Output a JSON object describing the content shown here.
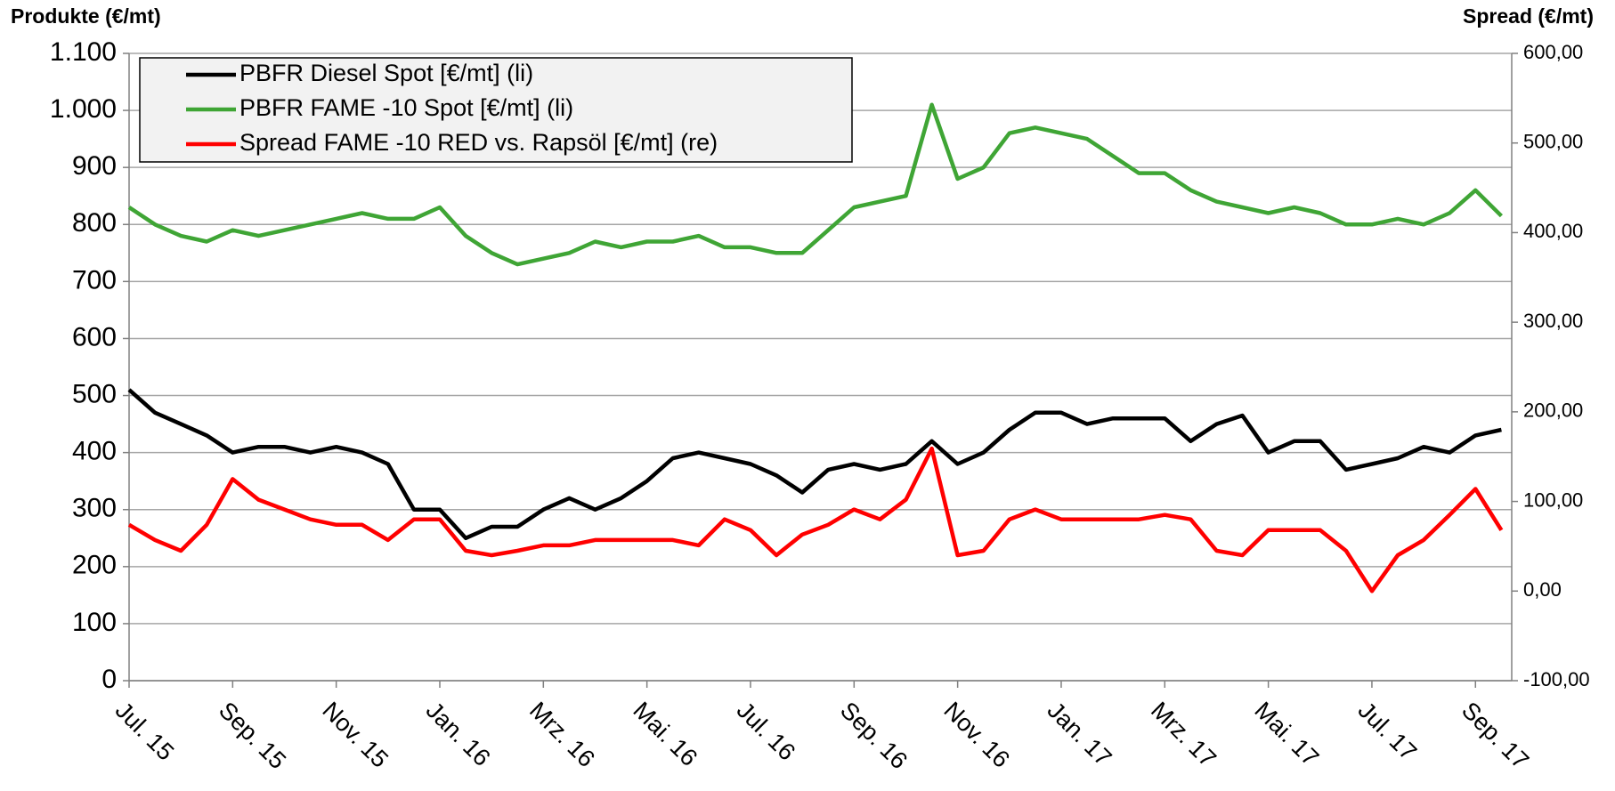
{
  "chart_data": {
    "type": "line",
    "y_label": "Produkte (€/mt)",
    "y2_label": "Spread (€/mt)",
    "categories": [
      "Jul. 15",
      null,
      null,
      null,
      "Sep. 15",
      null,
      null,
      null,
      "Nov. 15",
      null,
      null,
      null,
      "Jan. 16",
      null,
      null,
      null,
      "Mrz. 16",
      null,
      null,
      null,
      "Mai. 16",
      null,
      null,
      null,
      "Jul. 16",
      null,
      null,
      null,
      "Sep. 16",
      null,
      null,
      null,
      "Nov. 16",
      null,
      null,
      null,
      "Jan. 17",
      null,
      null,
      null,
      "Mrz. 17",
      null,
      null,
      null,
      "Mai. 17",
      null,
      null,
      null,
      "Jul. 17",
      null,
      null,
      null,
      "Sep. 17",
      null
    ],
    "series": [
      {
        "name": "PBFR Diesel Spot [€/mt] (li)",
        "color": "#000000",
        "values": [
          510,
          470,
          450,
          430,
          400,
          410,
          410,
          400,
          410,
          400,
          380,
          300,
          300,
          250,
          270,
          270,
          300,
          320,
          300,
          320,
          350,
          390,
          400,
          390,
          380,
          360,
          330,
          370,
          380,
          370,
          380,
          420,
          380,
          400,
          440,
          470,
          470,
          450,
          460,
          460,
          460,
          420,
          450,
          465,
          400,
          420,
          420,
          370,
          380,
          390,
          410,
          400,
          430,
          440
        ]
      },
      {
        "name": "PBFR FAME -10 Spot [€/mt] (li)",
        "color": "#3fa535",
        "values": [
          830,
          800,
          780,
          770,
          790,
          780,
          790,
          800,
          810,
          820,
          810,
          810,
          830,
          780,
          750,
          730,
          740,
          750,
          770,
          760,
          770,
          770,
          780,
          760,
          760,
          750,
          750,
          790,
          830,
          840,
          850,
          1010,
          880,
          900,
          960,
          970,
          960,
          950,
          920,
          890,
          890,
          860,
          840,
          830,
          820,
          830,
          820,
          800,
          800,
          810,
          800,
          820,
          860,
          815
        ]
      },
      {
        "name": "Spread FAME -10 RED vs. Rapsöl [€/mt] (re)",
        "color": "#ff0000",
        "axis": "y2",
        "values": [
          74,
          57,
          45,
          74,
          125,
          102,
          91,
          80,
          74,
          74,
          57,
          80,
          80,
          45,
          40,
          45,
          51,
          51,
          57,
          57,
          57,
          57,
          51,
          80,
          68,
          40,
          63,
          74,
          91,
          80,
          102,
          159,
          40,
          45,
          80,
          91,
          80,
          80,
          80,
          80,
          85,
          80,
          45,
          40,
          68,
          68,
          68,
          45,
          0,
          40,
          57,
          85,
          114,
          68
        ]
      }
    ],
    "ylim": [
      0,
      1100
    ],
    "yticks": [
      0,
      100,
      200,
      300,
      400,
      500,
      600,
      700,
      800,
      900,
      {
        "value": 1000,
        "label": "1.000"
      },
      {
        "value": 1100,
        "label": "1.100"
      }
    ],
    "y2lim": [
      -100,
      600
    ],
    "y2ticks": [
      {
        "value": -100,
        "label": "-100,00"
      },
      {
        "value": 0,
        "label": "0,00"
      },
      {
        "value": 100,
        "label": "100,00"
      },
      {
        "value": 200,
        "label": "200,00"
      },
      {
        "value": 300,
        "label": "300,00"
      },
      {
        "value": 400,
        "label": "400,00"
      },
      {
        "value": 500,
        "label": "500,00"
      },
      {
        "value": 600,
        "label": "600,00"
      }
    ],
    "grid": true,
    "legend": "top-left"
  }
}
